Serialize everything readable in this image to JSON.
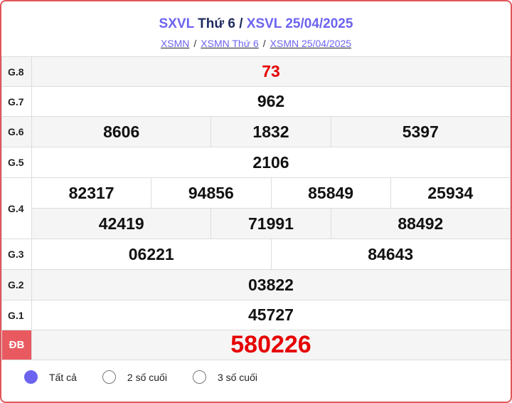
{
  "header": {
    "title_part1": "SXVL",
    "title_part2": "Thứ 6",
    "title_sep": "/",
    "title_part3": "XSVL 25/04/2025"
  },
  "breadcrumb": [
    {
      "label": "XSMN"
    },
    {
      "label": "XSMN Thứ 6"
    },
    {
      "label": "XSMN 25/04/2025"
    }
  ],
  "breadcrumb_sep": "/",
  "results": {
    "g8": {
      "label": "G.8",
      "values": [
        "73"
      ]
    },
    "g7": {
      "label": "G.7",
      "values": [
        "962"
      ]
    },
    "g6": {
      "label": "G.6",
      "values": [
        "8606",
        "1832",
        "5397"
      ]
    },
    "g5": {
      "label": "G.5",
      "values": [
        "2106"
      ]
    },
    "g4": {
      "label": "G.4",
      "values": [
        "82317",
        "94856",
        "85849",
        "25934",
        "42419",
        "71991",
        "88492"
      ]
    },
    "g3": {
      "label": "G.3",
      "values": [
        "06221",
        "84643"
      ]
    },
    "g2": {
      "label": "G.2",
      "values": [
        "03822"
      ]
    },
    "g1": {
      "label": "G.1",
      "values": [
        "45727"
      ]
    },
    "db": {
      "label": "ĐB",
      "values": [
        "580226"
      ]
    }
  },
  "filter": {
    "options": [
      {
        "label": "Tất cả",
        "selected": true
      },
      {
        "label": "2 số cuối",
        "selected": false
      },
      {
        "label": "3 số cuối",
        "selected": false
      }
    ]
  },
  "colors": {
    "accent": "#6c63f0",
    "special": "#e60000",
    "border": "#e0565b"
  }
}
